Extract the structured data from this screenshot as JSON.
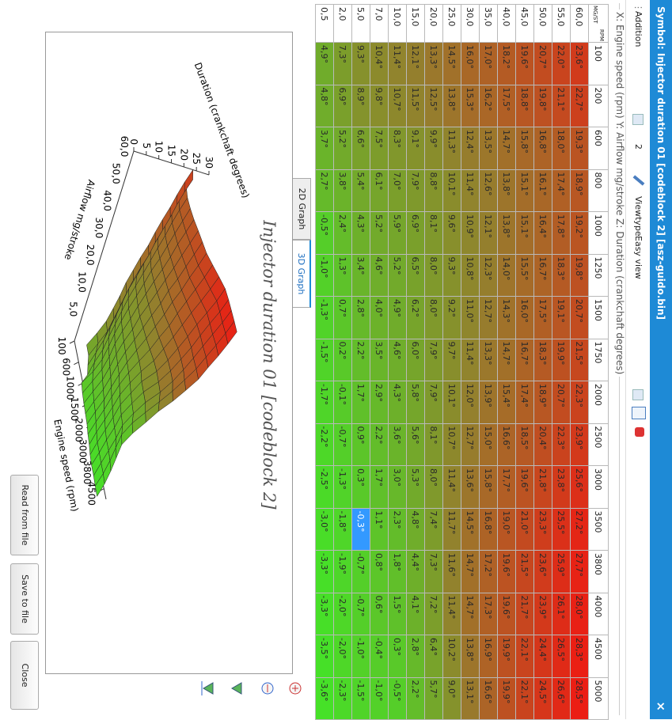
{
  "window": {
    "title": "Symbol: Injector duration 01 [codeblock 2] [asz-guido.bin]",
    "close": "×"
  },
  "toolbar": {
    "addition": "Addition",
    "spin": "2",
    "viewtype_label": "Viewtype",
    "viewtype": "Easy view"
  },
  "axes_caption": "X: Engine speed (rpm) Y: Airflow mg/stroke Z: Duration (crankchaft degrees)",
  "table": {
    "corner": [
      "RPM",
      "MG/ST"
    ],
    "columns": [
      100,
      200,
      600,
      800,
      1000,
      1250,
      1500,
      1750,
      2000,
      2500,
      3000,
      3500,
      3800,
      4000,
      4500,
      5000
    ],
    "selected": [
      12,
      11
    ],
    "rows": [
      {
        "label": "60,0",
        "cells": [
          "23,6°",
          "22,7°",
          "19,3°",
          "18,9°",
          "19,2°",
          "19,8°",
          "20,7°",
          "21,5°",
          "22,3°",
          "23,9°",
          "25,6°",
          "27,2°",
          "27,7°",
          "28,0°",
          "28,3°",
          "28,5°"
        ]
      },
      {
        "label": "55,0",
        "cells": [
          "22,0°",
          "21,1°",
          "18,0°",
          "17,4°",
          "17,8°",
          "18,3°",
          "19,1°",
          "19,9°",
          "20,7°",
          "22,3°",
          "23,8°",
          "25,5°",
          "25,9°",
          "26,1°",
          "26,5°",
          "26,6°"
        ]
      },
      {
        "label": "50,0",
        "cells": [
          "20,7°",
          "19,8°",
          "16,8°",
          "16,1°",
          "16,4°",
          "16,7°",
          "17,5°",
          "18,3°",
          "18,9°",
          "20,4°",
          "21,8°",
          "23,3°",
          "23,6°",
          "23,9°",
          "24,4°",
          "24,5°"
        ]
      },
      {
        "label": "45,0",
        "cells": [
          "19,6°",
          "18,8°",
          "15,8°",
          "15,1°",
          "15,1°",
          "15,5°",
          "16,0°",
          "16,7°",
          "17,4°",
          "18,5°",
          "19,6°",
          "21,0°",
          "21,5°",
          "21,7°",
          "22,1°",
          "22,1°"
        ]
      },
      {
        "label": "40,0",
        "cells": [
          "18,2°",
          "17,5°",
          "14,7°",
          "13,8°",
          "13,8°",
          "14,0°",
          "14,3°",
          "14,7°",
          "15,4°",
          "16,6°",
          "17,7°",
          "19,0°",
          "19,6°",
          "19,6°",
          "19,9°",
          "19,9°"
        ]
      },
      {
        "label": "35,0",
        "cells": [
          "17,0°",
          "16,2°",
          "13,5°",
          "12,6°",
          "12,1°",
          "12,3°",
          "12,7°",
          "13,3°",
          "13,9°",
          "15,0°",
          "15,8°",
          "16,8°",
          "17,2°",
          "17,3°",
          "16,9°",
          "16,6°"
        ]
      },
      {
        "label": "30,0",
        "cells": [
          "16,0°",
          "15,3°",
          "12,4°",
          "11,4°",
          "10,9°",
          "10,8°",
          "11,0°",
          "11,4°",
          "12,0°",
          "12,7°",
          "13,6°",
          "14,5°",
          "14,7°",
          "14,7°",
          "13,8°",
          "13,1°"
        ]
      },
      {
        "label": "25,0",
        "cells": [
          "14,5°",
          "13,8°",
          "11,3°",
          "10,1°",
          "9,6°",
          "9,3°",
          "9,2°",
          "9,7°",
          "10,1°",
          "10,7°",
          "11,4°",
          "11,7°",
          "11,6°",
          "11,4°",
          "10,2°",
          "9,0°"
        ]
      },
      {
        "label": "20,0",
        "cells": [
          "13,3°",
          "12,5°",
          "9,9°",
          "8,8°",
          "8,1°",
          "8,0°",
          "8,0°",
          "7,9°",
          "7,9°",
          "8,1°",
          "8,0°",
          "7,4°",
          "7,3°",
          "7,2°",
          "6,4°",
          "5,7°"
        ]
      },
      {
        "label": "15,0",
        "cells": [
          "12,1°",
          "11,5°",
          "9,1°",
          "7,9°",
          "6,9°",
          "6,5°",
          "6,2°",
          "6,0°",
          "5,8°",
          "5,6°",
          "5,3°",
          "4,8°",
          "4,4°",
          "4,1°",
          "2,8°",
          "2,2°"
        ]
      },
      {
        "label": "10,0",
        "cells": [
          "11,4°",
          "10,7°",
          "8,3°",
          "7,0°",
          "5,9°",
          "5,2°",
          "4,9°",
          "4,6°",
          "4,3°",
          "3,6°",
          "3,0°",
          "2,3°",
          "1,8°",
          "1,5°",
          "0,3°",
          "-0,5°"
        ]
      },
      {
        "label": "7,0",
        "cells": [
          "10,4°",
          "9,8°",
          "7,5°",
          "6,1°",
          "5,2°",
          "4,6°",
          "4,0°",
          "3,5°",
          "2,9°",
          "2,2°",
          "1,7°",
          "1,1°",
          "0,8°",
          "0,6°",
          "-0,4°",
          "-1,0°"
        ]
      },
      {
        "label": "5,0",
        "cells": [
          "9,3°",
          "8,9°",
          "6,6°",
          "5,4°",
          "4,3°",
          "3,4°",
          "2,8°",
          "2,2°",
          "1,7°",
          "0,9°",
          "0,3°",
          "-0,3°",
          "-0,7°",
          "-0,7°",
          "-1,0°",
          "-1,5°"
        ]
      },
      {
        "label": "2,0",
        "cells": [
          "7,3°",
          "6,9°",
          "5,2°",
          "3,8°",
          "2,4°",
          "1,3°",
          "0,7°",
          "0,2°",
          "-0,1°",
          "-0,7°",
          "-1,3°",
          "-1,8°",
          "-1,9°",
          "-2,0°",
          "-2,0°",
          "-2,3°"
        ]
      },
      {
        "label": "0,5",
        "cells": [
          "4,9°",
          "4,8°",
          "3,7°",
          "2,7°",
          "-0,5°",
          "-1,0°",
          "-1,3°",
          "-1,5°",
          "-1,7°",
          "-2,2°",
          "-2,5°",
          "-3,0°",
          "-3,3°",
          "-3,3°",
          "-3,5°",
          "-3,6°"
        ]
      }
    ]
  },
  "tabs": [
    "2D Graph",
    "3D Graph"
  ],
  "active_tab": 1,
  "graph": {
    "title": "Injector duration 01 [codeblock 2]",
    "z_label": "Duration (crankchaft degrees)",
    "z_ticks": [
      0,
      5,
      10,
      15,
      20,
      25,
      30
    ],
    "y_label": "Airflow mg/stroke",
    "y_ticks": [
      "60,0",
      "50,0",
      "40,0",
      "30,0",
      "20,0",
      "10,0",
      "5,0"
    ],
    "x_label": "Engine speed (rpm)",
    "x_ticks": [
      100,
      600,
      1000,
      1500,
      2000,
      3000,
      3800,
      4500
    ]
  },
  "buttons": [
    "Read from file",
    "Save to file",
    "Close"
  ]
}
